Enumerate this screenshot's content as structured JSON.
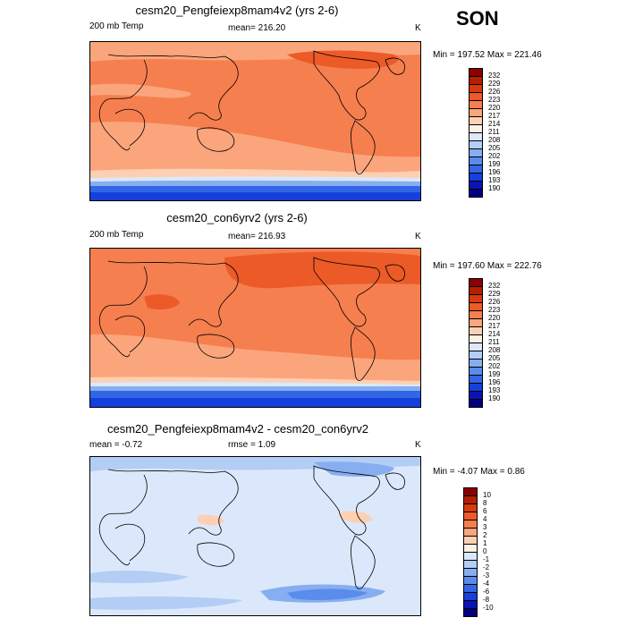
{
  "season": "SON",
  "units": "K",
  "panels": [
    {
      "title": "cesm20_Pengfeiexp8mam4v2 (yrs 2-6)",
      "left_label": "200 mb Temp",
      "center_label": "mean= 216.20",
      "right_label": "K",
      "minmax": "Min = 197.52 Max = 221.46",
      "colorbar_labels": [
        "232",
        "229",
        "226",
        "223",
        "220",
        "217",
        "214",
        "211",
        "208",
        "205",
        "202",
        "199",
        "196",
        "193",
        "190"
      ],
      "colorbar_colors": [
        "#8b0000",
        "#b41f00",
        "#d83a0a",
        "#ec5a27",
        "#f67f4f",
        "#fba57c",
        "#fdd0b4",
        "#fdf0e4",
        "#dbe8fb",
        "#b3cdf5",
        "#86aef0",
        "#5a8cec",
        "#3366e6",
        "#1540dc",
        "#0a14b4",
        "#000080"
      ],
      "mean_value": 216.2
    },
    {
      "title": "cesm20_con6yrv2 (yrs 2-6)",
      "left_label": "200 mb Temp",
      "center_label": "mean= 216.93",
      "right_label": "K",
      "minmax": "Min = 197.60 Max = 222.76",
      "colorbar_labels": [
        "232",
        "229",
        "226",
        "223",
        "220",
        "217",
        "214",
        "211",
        "208",
        "205",
        "202",
        "199",
        "196",
        "193",
        "190"
      ],
      "colorbar_colors": [
        "#8b0000",
        "#b41f00",
        "#d83a0a",
        "#ec5a27",
        "#f67f4f",
        "#fba57c",
        "#fdd0b4",
        "#fdf0e4",
        "#dbe8fb",
        "#b3cdf5",
        "#86aef0",
        "#5a8cec",
        "#3366e6",
        "#1540dc",
        "#0a14b4",
        "#000080"
      ],
      "mean_value": 216.93
    },
    {
      "title": "cesm20_Pengfeiexp8mam4v2 - cesm20_con6yrv2",
      "left_label": "mean =  -0.72",
      "center_label": "rmse =   1.09",
      "right_label": "K",
      "minmax": "Min =  -4.07 Max =   0.86",
      "colorbar_labels": [
        "10",
        "8",
        "6",
        "4",
        "3",
        "2",
        "1",
        "0",
        "-1",
        "-2",
        "-3",
        "-4",
        "-6",
        "-8",
        "-10"
      ],
      "colorbar_colors": [
        "#8b0000",
        "#b41f00",
        "#d83a0a",
        "#ec5a27",
        "#f67f4f",
        "#fba57c",
        "#fdd0b4",
        "#fdf0e4",
        "#dbe8fb",
        "#b3cdf5",
        "#86aef0",
        "#5a8cec",
        "#3366e6",
        "#1540dc",
        "#0a14b4",
        "#000080"
      ],
      "mean_value": -0.72
    }
  ]
}
